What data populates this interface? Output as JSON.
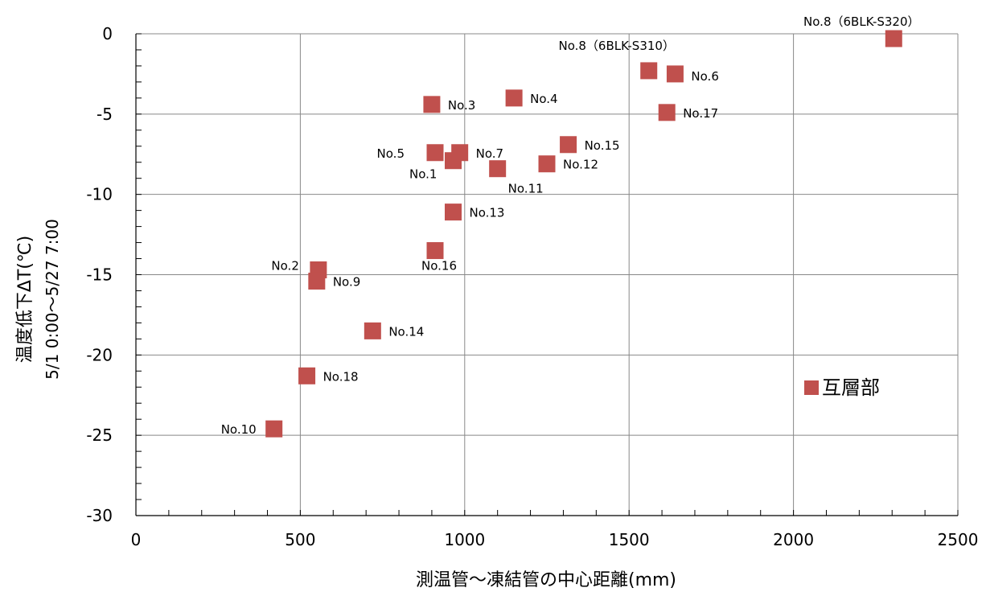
{
  "chart_data": {
    "type": "scatter",
    "xlabel": "測温管～凍結管の中心距離(mm)",
    "ylabel_line1": "温度低下ΔT(℃)",
    "ylabel_line2": "5/1  0:00～5/27  7:00",
    "xlim": [
      0,
      2500
    ],
    "ylim": [
      -30,
      0
    ],
    "x_ticks": [
      0,
      500,
      1000,
      1500,
      2000,
      2500
    ],
    "y_ticks": [
      0,
      -5,
      -10,
      -15,
      -20,
      -25,
      -30
    ],
    "grid": true,
    "marker": "square",
    "marker_color": "#c0504d",
    "legend": {
      "position": "right",
      "entries": [
        "互層部"
      ]
    },
    "series": [
      {
        "name": "互層部",
        "points": [
          {
            "x": 420,
            "y": -24.6,
            "label": "No.10"
          },
          {
            "x": 520,
            "y": -21.3,
            "label": "No.18"
          },
          {
            "x": 555,
            "y": -14.7,
            "label": "No.2"
          },
          {
            "x": 550,
            "y": -15.4,
            "label": "No.9"
          },
          {
            "x": 720,
            "y": -18.5,
            "label": "No.14"
          },
          {
            "x": 900,
            "y": -4.4,
            "label": "No.3"
          },
          {
            "x": 910,
            "y": -7.4,
            "label": "No.5"
          },
          {
            "x": 965,
            "y": -7.9,
            "label": "No.1"
          },
          {
            "x": 985,
            "y": -7.4,
            "label": "No.7"
          },
          {
            "x": 965,
            "y": -11.1,
            "label": "No.13"
          },
          {
            "x": 910,
            "y": -13.5,
            "label": "No.16"
          },
          {
            "x": 1100,
            "y": -8.4,
            "label": "No.11"
          },
          {
            "x": 1150,
            "y": -4.0,
            "label": "No.4"
          },
          {
            "x": 1250,
            "y": -8.1,
            "label": "No.12"
          },
          {
            "x": 1315,
            "y": -6.9,
            "label": "No.15"
          },
          {
            "x": 1560,
            "y": -2.3,
            "label": "No.8（6BLK-S310）"
          },
          {
            "x": 1640,
            "y": -2.5,
            "label": "No.6"
          },
          {
            "x": 1615,
            "y": -4.9,
            "label": "No.17"
          },
          {
            "x": 2305,
            "y": -0.3,
            "label": "No.8（6BLK-S320）"
          }
        ]
      }
    ]
  }
}
